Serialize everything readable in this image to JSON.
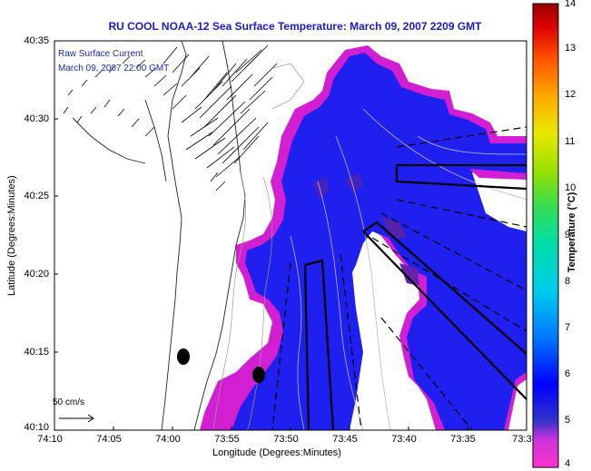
{
  "title": "RU COOL  NOAA-12  Sea Surface Temperature:  March 09, 2007 2209 GMT",
  "legend": {
    "line1": "Raw Surface Current",
    "line2": "March 09, 2007 22:00 GMT"
  },
  "scale_label": "50 cm/s",
  "axes": {
    "xlabel": "Longitude (Degrees:Minutes)",
    "ylabel": "Latitude (Degrees:Minutes)",
    "xticks": [
      "74:10",
      "74:05",
      "74:00",
      "73:55",
      "73:50",
      "73:45",
      "73:40",
      "73:35",
      "73:3"
    ],
    "yticks": [
      "40:35",
      "40:30",
      "40:25",
      "40:20",
      "40:15",
      "40:10"
    ]
  },
  "colorbar": {
    "label": "Temperature (°C)",
    "ticks": [
      "14",
      "13",
      "12",
      "11",
      "10",
      "9",
      "8",
      "7",
      "6",
      "5",
      "4"
    ],
    "range": [
      4,
      14
    ]
  },
  "colors": {
    "warm_water": "#1f1fef",
    "cold_edge": "#d21fd2",
    "title_blue": "#1a1acc"
  }
}
